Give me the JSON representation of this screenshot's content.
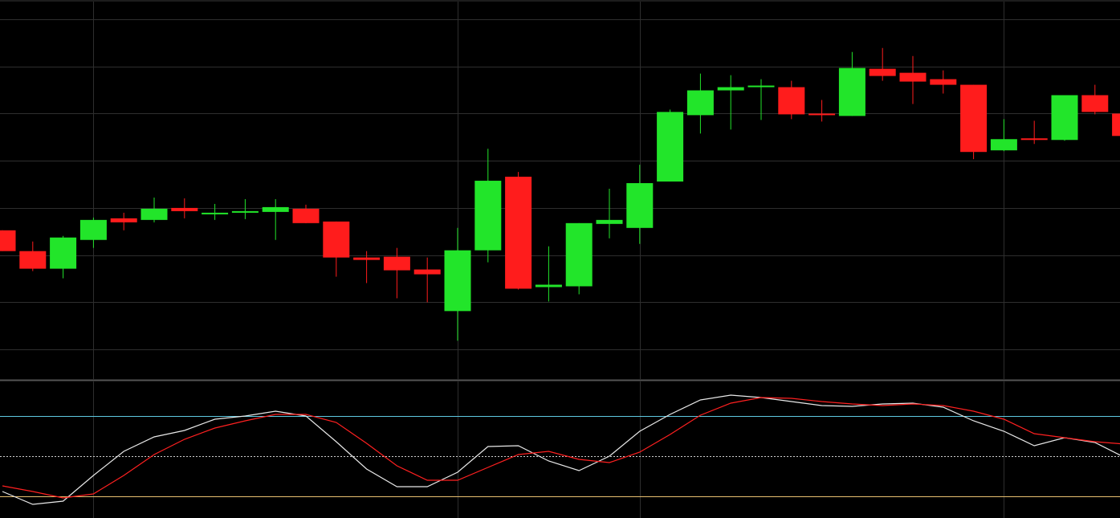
{
  "chart_data": [
    {
      "type": "candlestick",
      "categories": [
        null,
        null,
        null,
        null,
        null,
        null,
        null,
        null,
        null,
        null,
        null,
        null,
        null,
        null,
        null,
        null,
        null,
        null,
        null,
        null,
        null,
        null,
        null,
        null,
        null,
        null,
        null,
        null,
        null,
        null,
        null,
        null,
        null,
        null,
        null,
        null,
        null,
        null
      ],
      "open": [
        184,
        158,
        136,
        172,
        199,
        197,
        212,
        204,
        207,
        207,
        211,
        195,
        150,
        151,
        135,
        83,
        159,
        251,
        113,
        114,
        192,
        187,
        245,
        328,
        359,
        363,
        363,
        330,
        327,
        386,
        381,
        373,
        366,
        284,
        299,
        297,
        353,
        330
      ],
      "high": [
        184,
        170,
        177,
        200,
        206,
        225,
        224,
        217,
        223,
        223,
        216,
        195,
        158,
        162,
        150,
        187,
        286,
        257,
        164,
        193,
        236,
        266,
        335,
        380,
        378,
        373,
        371,
        347,
        407,
        412,
        402,
        384,
        366,
        323,
        321,
        353,
        366,
        330
      ],
      "low": [
        158,
        133,
        124,
        162,
        184,
        194,
        199,
        197,
        198,
        172,
        193,
        126,
        118,
        99,
        94,
        46,
        144,
        110,
        95,
        104,
        174,
        167,
        245,
        305,
        310,
        322,
        323,
        320,
        327,
        371,
        342,
        355,
        273,
        283,
        292,
        296,
        329,
        302
      ],
      "close": [
        158,
        136,
        175,
        197,
        194,
        211,
        208,
        206,
        208,
        213,
        193,
        150,
        147,
        134,
        129,
        159,
        246,
        111,
        116,
        193,
        197,
        243,
        332,
        359,
        363,
        365,
        329,
        328,
        387,
        377,
        370,
        366,
        282,
        298,
        297,
        353,
        332,
        302
      ],
      "up_color": "#22e52a",
      "down_color": "#ff1c1c",
      "ylim": [
        -2,
        470
      ],
      "yticks": [
        35,
        94,
        153,
        212,
        271,
        330,
        389,
        448
      ],
      "grid": true,
      "xgrid": [
        3,
        15,
        21,
        33
      ]
    },
    {
      "type": "line",
      "series": [
        {
          "color": "#e8e8e8",
          "values": [
            23.6,
            14,
            16.4,
            35.6,
            53.6,
            64.4,
            69.2,
            77.6,
            80,
            83.6,
            80,
            60.8,
            40.4,
            27.2,
            27.2,
            38,
            57.2,
            57.8,
            46.4,
            39.2,
            50,
            68.6,
            81.2,
            92,
            95.6,
            93.8,
            90.8,
            87.8,
            87.2,
            89,
            89.6,
            86.6,
            76.4,
            68.6,
            57.8,
            63.8,
            60.2,
            48.8
          ]
        },
        {
          "color": "#ff2020",
          "values": [
            27.8,
            23.6,
            18.8,
            21.8,
            35.6,
            51.2,
            62.6,
            71,
            76.4,
            81.2,
            81.2,
            75.2,
            59.6,
            42.8,
            32,
            32,
            41.6,
            51.2,
            53.6,
            47.6,
            45.2,
            53,
            66.2,
            80.6,
            89.6,
            93.8,
            93.2,
            90.8,
            89,
            87.8,
            89,
            87.8,
            83.6,
            77.6,
            66.8,
            63.8,
            60.8,
            59
          ]
        }
      ],
      "levels": [
        {
          "value": 80,
          "color": "#5ec8e0"
        },
        {
          "value": 50,
          "color": "#cfcfcf",
          "dashed": true
        },
        {
          "value": 20,
          "color": "#e8c070"
        }
      ],
      "ylim": [
        3.8,
        105.8
      ],
      "xgrid": [
        3,
        15,
        21,
        33
      ]
    }
  ]
}
